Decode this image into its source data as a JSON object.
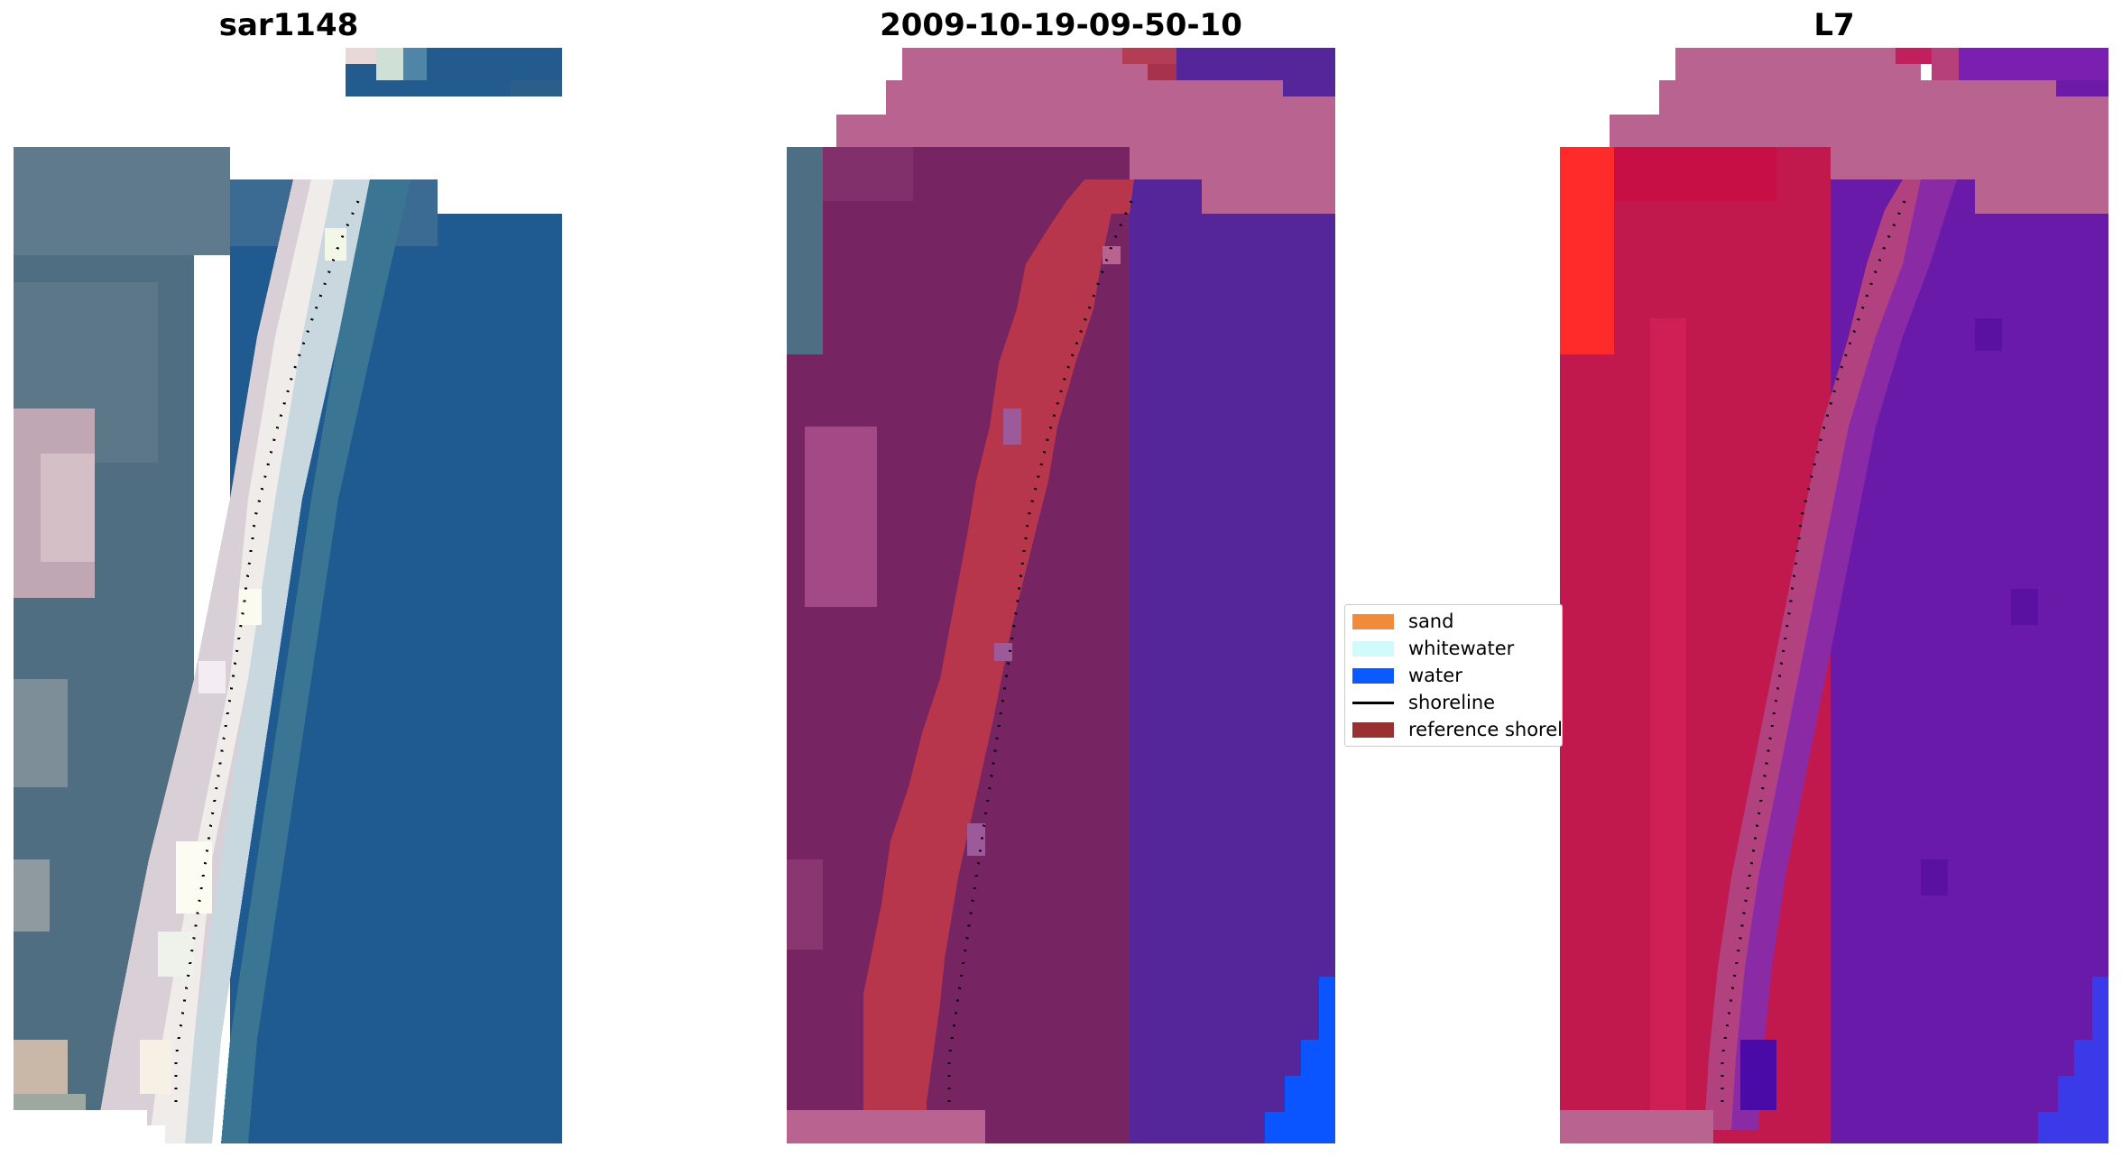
{
  "panels": [
    {
      "title": "sar1148"
    },
    {
      "title": "2009-10-19-09-50-10"
    },
    {
      "title": "L7"
    }
  ],
  "legend": {
    "items": [
      {
        "label": "sand",
        "color": "#f28a3c"
      },
      {
        "label": "whitewater",
        "color": "#cffcfb"
      },
      {
        "label": "water",
        "color": "#0a5aff"
      },
      {
        "label": "shoreline",
        "color": "#000000"
      },
      {
        "label": "reference shoreline",
        "color": "#9b3030"
      }
    ]
  }
}
